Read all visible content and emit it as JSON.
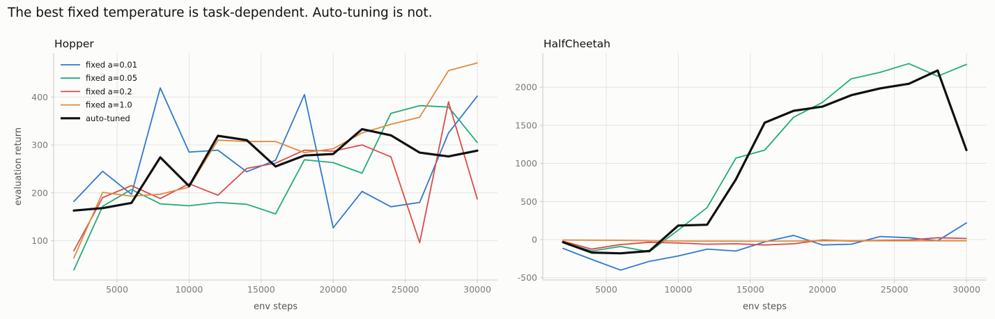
{
  "figure": {
    "title": "The best fixed temperature is task-dependent. Auto-tuning is not."
  },
  "chart_data": [
    {
      "type": "line",
      "title": "Hopper",
      "xlabel": "env steps",
      "ylabel": "evaluation return",
      "xlim": [
        600,
        31400
      ],
      "ylim": [
        18,
        492
      ],
      "xticks": [
        5000,
        10000,
        15000,
        20000,
        25000,
        30000
      ],
      "yticks": [
        100,
        200,
        300,
        400
      ],
      "grid": true,
      "legend": "top-left",
      "x": [
        2000,
        4000,
        6000,
        8000,
        10000,
        12000,
        14000,
        16000,
        18000,
        20000,
        22000,
        24000,
        26000,
        28000,
        30000
      ],
      "series": [
        {
          "name": "fixed a=0.01",
          "color": "#2f78cf",
          "width": 1.8,
          "values": [
            182,
            245,
            197,
            419,
            285,
            289,
            244,
            268,
            405,
            127,
            203,
            171,
            180,
            325,
            402
          ]
        },
        {
          "name": "fixed a=0.05",
          "color": "#20ab7d",
          "width": 1.8,
          "values": [
            39,
            172,
            207,
            177,
            173,
            180,
            176,
            156,
            269,
            263,
            241,
            366,
            382,
            379,
            305
          ]
        },
        {
          "name": "fixed a=0.2",
          "color": "#d94b4b",
          "width": 1.8,
          "values": [
            79,
            190,
            215,
            188,
            219,
            195,
            251,
            262,
            289,
            287,
            300,
            275,
            96,
            390,
            187
          ]
        },
        {
          "name": "fixed a=1.0",
          "color": "#df8a3f",
          "width": 1.8,
          "values": [
            64,
            201,
            193,
            197,
            212,
            310,
            307,
            307,
            284,
            292,
            325,
            343,
            358,
            455,
            471
          ]
        },
        {
          "name": "auto-tuned",
          "color": "#0f0f0f",
          "width": 3.2,
          "values": [
            163,
            168,
            179,
            274,
            214,
            319,
            310,
            255,
            278,
            281,
            333,
            320,
            284,
            276,
            288
          ]
        }
      ]
    },
    {
      "type": "line",
      "title": "HalfCheetah",
      "xlabel": "env steps",
      "ylabel": "",
      "xlim": [
        600,
        31400
      ],
      "ylim": [
        -530,
        2450
      ],
      "xticks": [
        5000,
        10000,
        15000,
        20000,
        25000,
        30000
      ],
      "yticks": [
        -500,
        0,
        500,
        1000,
        1500,
        2000
      ],
      "grid": true,
      "legend": "none",
      "x": [
        2000,
        4000,
        6000,
        8000,
        10000,
        12000,
        14000,
        16000,
        18000,
        20000,
        22000,
        24000,
        26000,
        28000,
        30000
      ],
      "series": [
        {
          "name": "fixed a=0.01",
          "color": "#2f78cf",
          "width": 1.8,
          "values": [
            -115,
            -260,
            -400,
            -285,
            -215,
            -125,
            -150,
            -30,
            55,
            -70,
            -60,
            40,
            25,
            -15,
            220
          ]
        },
        {
          "name": "fixed a=0.05",
          "color": "#20ab7d",
          "width": 1.8,
          "values": [
            -35,
            -150,
            -90,
            -160,
            125,
            420,
            1070,
            1175,
            1605,
            1800,
            2110,
            2195,
            2310,
            2145,
            2300
          ]
        },
        {
          "name": "fixed a=0.2",
          "color": "#d94b4b",
          "width": 1.8,
          "values": [
            -20,
            -125,
            -65,
            -35,
            -45,
            -60,
            -55,
            -70,
            -55,
            -5,
            -20,
            -10,
            -5,
            25,
            15
          ]
        },
        {
          "name": "fixed a=1.0",
          "color": "#df8a3f",
          "width": 1.8,
          "values": [
            -5,
            -8,
            -10,
            -15,
            -18,
            -20,
            -20,
            -22,
            -18,
            -15,
            -15,
            -15,
            -15,
            -15,
            -15
          ]
        },
        {
          "name": "auto-tuned",
          "color": "#0f0f0f",
          "width": 3.2,
          "values": [
            -35,
            -170,
            -180,
            -150,
            185,
            195,
            790,
            1535,
            1690,
            1745,
            1895,
            1985,
            2045,
            2220,
            1175
          ]
        }
      ]
    }
  ]
}
